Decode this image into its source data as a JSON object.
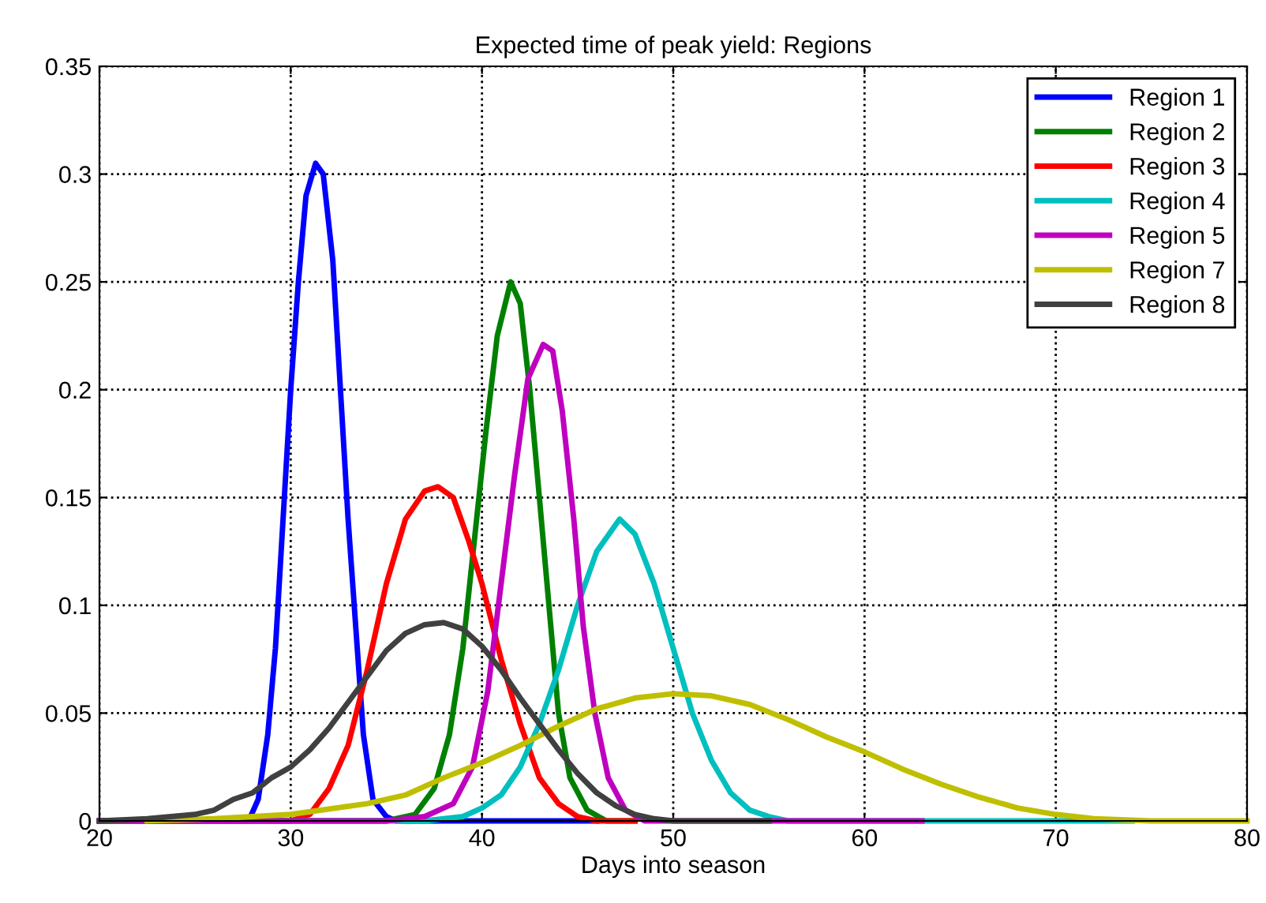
{
  "chart_data": {
    "type": "line",
    "title": "Expected time of peak yield: Regions",
    "xlabel": "Days into season",
    "xlim": [
      20,
      80
    ],
    "xticks": [
      20,
      30,
      40,
      50,
      60,
      70,
      80
    ],
    "ylim": [
      0,
      0.35
    ],
    "yticks": [
      0,
      0.05,
      0.1,
      0.15,
      0.2,
      0.25,
      0.3,
      0.35
    ],
    "grid": true,
    "legend": "top right",
    "line_style": "solid",
    "marker": "none",
    "series": [
      {
        "name": "Region 1",
        "color": "#0000ff",
        "x": [
          20,
          27.8,
          28.3,
          28.8,
          29.2,
          29.6,
          30,
          30.4,
          30.8,
          31.3,
          31.7,
          32.2,
          32.6,
          33,
          33.4,
          33.8,
          34.3,
          35,
          35.5,
          46
        ],
        "values": [
          0,
          0,
          0.01,
          0.04,
          0.08,
          0.14,
          0.2,
          0.25,
          0.29,
          0.305,
          0.3,
          0.26,
          0.2,
          0.14,
          0.09,
          0.04,
          0.01,
          0.002,
          0,
          0
        ]
      },
      {
        "name": "Region 2",
        "color": "#008000",
        "x": [
          20,
          35,
          36.5,
          37.5,
          38.3,
          39,
          39.6,
          40.2,
          40.8,
          41.5,
          42,
          42.5,
          43,
          43.5,
          44,
          44.6,
          45.5,
          46.5,
          48
        ],
        "values": [
          0,
          0,
          0.003,
          0.015,
          0.04,
          0.08,
          0.13,
          0.18,
          0.225,
          0.25,
          0.24,
          0.2,
          0.15,
          0.1,
          0.05,
          0.02,
          0.005,
          0,
          0
        ]
      },
      {
        "name": "Region 3",
        "color": "#ff0000",
        "x": [
          20,
          30,
          31,
          32,
          33,
          34,
          35,
          36,
          37,
          37.7,
          38.5,
          39.3,
          40,
          41,
          42,
          43,
          44,
          45,
          46,
          48
        ],
        "values": [
          0,
          0,
          0.003,
          0.015,
          0.035,
          0.07,
          0.11,
          0.14,
          0.153,
          0.155,
          0.15,
          0.13,
          0.11,
          0.075,
          0.045,
          0.02,
          0.008,
          0.002,
          0,
          0
        ]
      },
      {
        "name": "Region 4",
        "color": "#00bfbf",
        "x": [
          20,
          37,
          39,
          40,
          41,
          42,
          43,
          44,
          45,
          46,
          47.2,
          48,
          49,
          50,
          51,
          52,
          53,
          54,
          55,
          56,
          74
        ],
        "values": [
          0,
          0,
          0.002,
          0.006,
          0.012,
          0.025,
          0.045,
          0.07,
          0.1,
          0.125,
          0.14,
          0.133,
          0.11,
          0.08,
          0.05,
          0.028,
          0.013,
          0.005,
          0.002,
          0,
          0
        ]
      },
      {
        "name": "Region 5",
        "color": "#bf00bf",
        "x": [
          20,
          35,
          37,
          38.5,
          39.5,
          40.3,
          41,
          41.7,
          42.4,
          43.2,
          43.7,
          44.2,
          44.8,
          45.3,
          45.9,
          46.6,
          47.5,
          48.5,
          63
        ],
        "values": [
          0,
          0,
          0.002,
          0.008,
          0.025,
          0.06,
          0.11,
          0.16,
          0.205,
          0.221,
          0.218,
          0.19,
          0.14,
          0.09,
          0.05,
          0.02,
          0.005,
          0,
          0
        ]
      },
      {
        "name": "Region 7",
        "color": "#bfbf00",
        "x": [
          22.5,
          26,
          30,
          34,
          36,
          38,
          40,
          42,
          44,
          46,
          48,
          50,
          52,
          54,
          56,
          58,
          60,
          62,
          64,
          66,
          68,
          70,
          72,
          75,
          80
        ],
        "values": [
          0,
          0.001,
          0.003,
          0.008,
          0.012,
          0.02,
          0.027,
          0.035,
          0.044,
          0.052,
          0.057,
          0.059,
          0.058,
          0.054,
          0.047,
          0.039,
          0.032,
          0.024,
          0.017,
          0.011,
          0.006,
          0.003,
          0.001,
          0,
          0
        ]
      },
      {
        "name": "Region 8",
        "color": "#404040",
        "x": [
          20,
          22.5,
          25,
          26,
          27,
          28,
          29,
          30,
          31,
          32,
          33,
          34,
          35,
          36,
          37,
          38,
          39,
          40,
          41,
          42,
          43,
          44,
          45,
          46,
          47,
          48,
          49,
          50,
          55
        ],
        "values": [
          0,
          0.001,
          0.003,
          0.005,
          0.01,
          0.013,
          0.02,
          0.025,
          0.033,
          0.043,
          0.055,
          0.067,
          0.079,
          0.087,
          0.091,
          0.092,
          0.089,
          0.081,
          0.07,
          0.057,
          0.045,
          0.033,
          0.022,
          0.013,
          0.007,
          0.003,
          0.001,
          0,
          0
        ]
      }
    ]
  }
}
